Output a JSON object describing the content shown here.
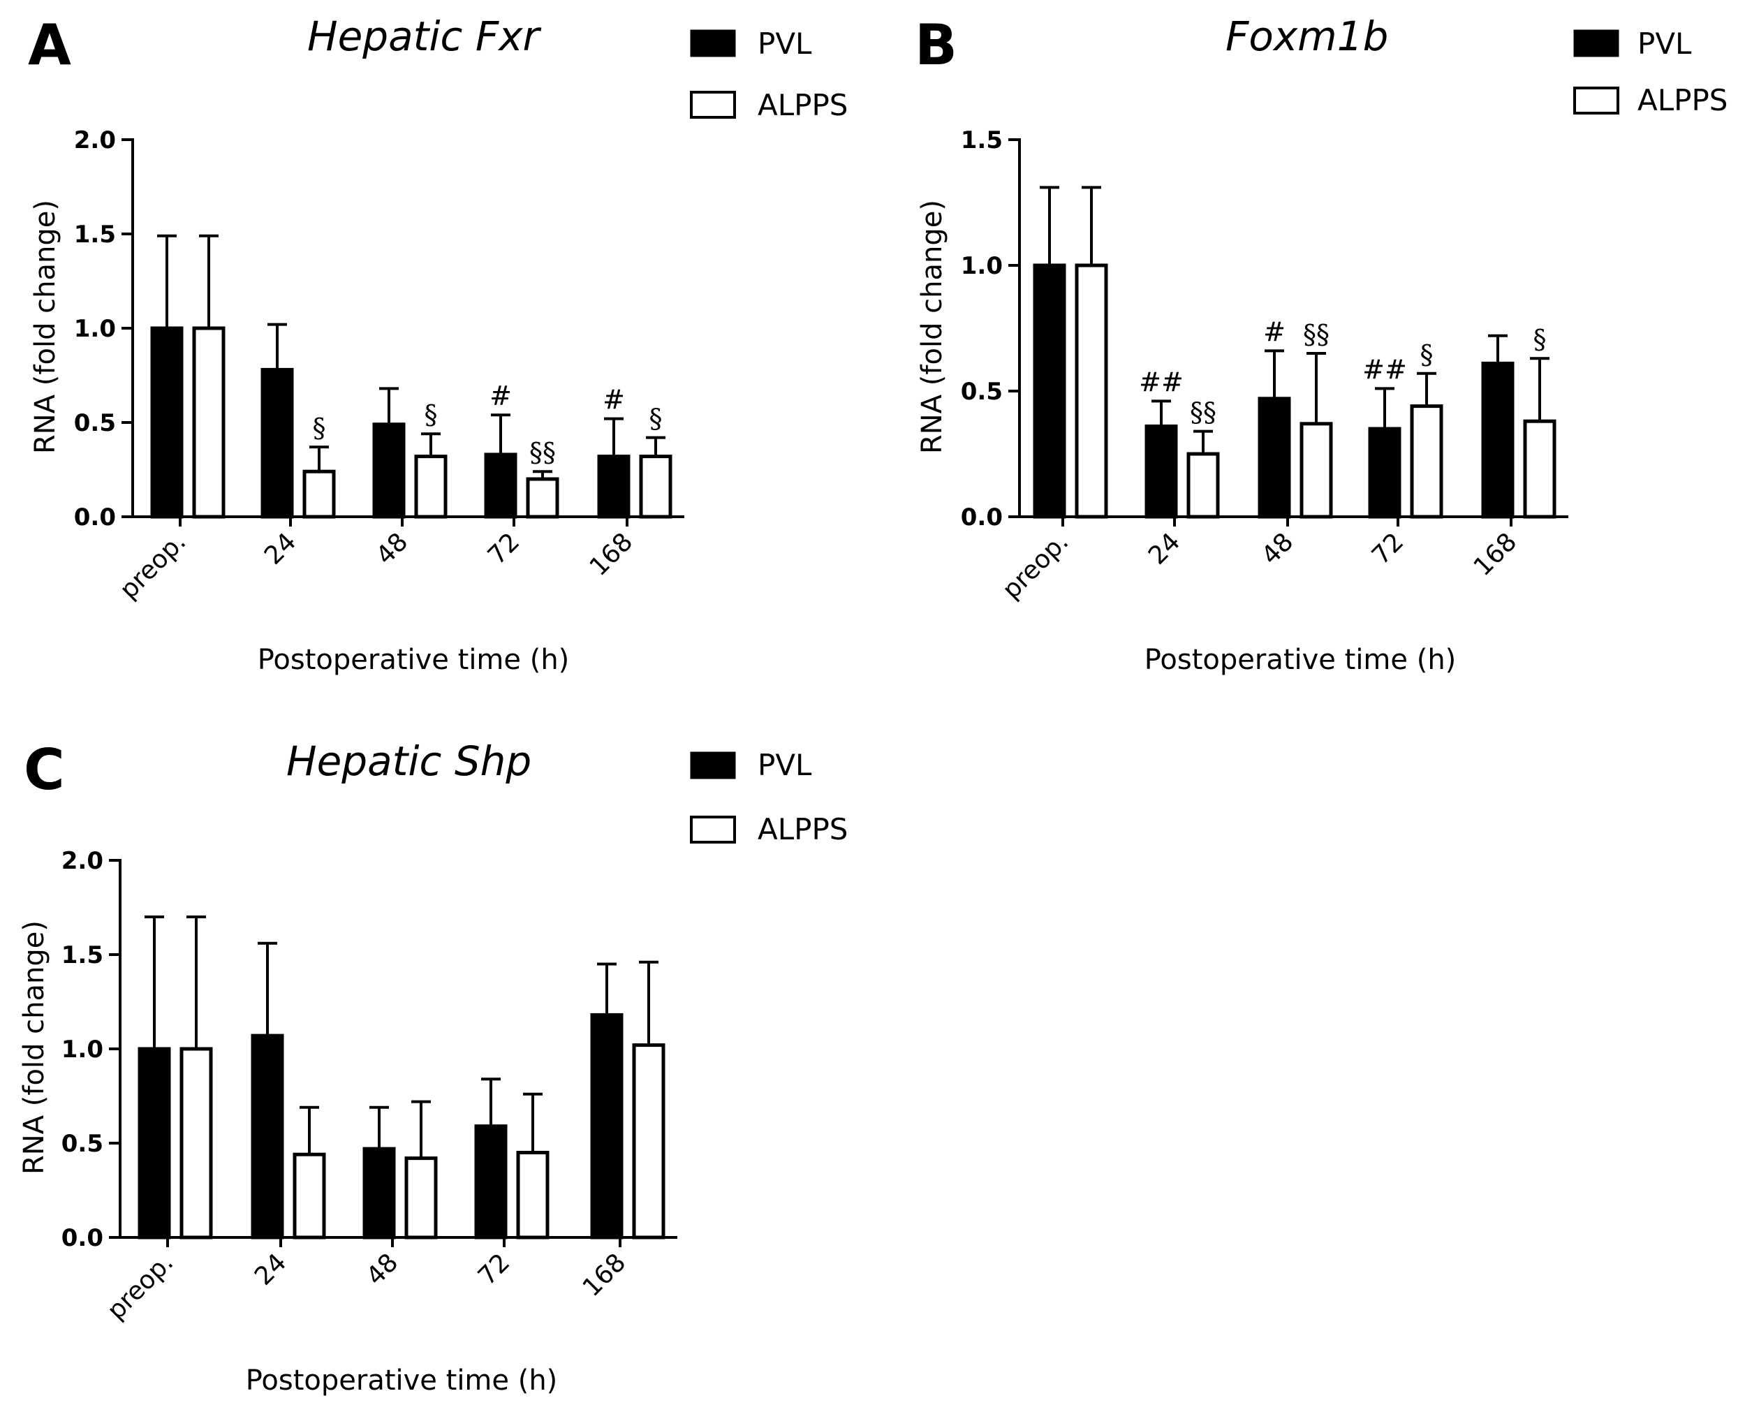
{
  "chart_data": [
    {
      "panel": "A",
      "type": "bar",
      "title": "Hepatic Fxr",
      "xlabel": "Postoperative time (h)",
      "ylabel": "RNA (fold change)",
      "categories": [
        "preop.",
        "24",
        "48",
        "72",
        "168"
      ],
      "ylim": [
        0,
        2.0
      ],
      "yticks": [
        "0.0",
        "0.5",
        "1.0",
        "1.5",
        "2.0"
      ],
      "legend_position": "top-right",
      "series": [
        {
          "name": "PVL",
          "fill": "#000000",
          "values": [
            1.0,
            0.78,
            0.49,
            0.33,
            0.32
          ],
          "errors": [
            0.49,
            0.24,
            0.19,
            0.21,
            0.2
          ],
          "annotations": [
            "",
            "",
            "",
            "#",
            "#"
          ]
        },
        {
          "name": "ALPPS",
          "fill": "#ffffff",
          "values": [
            1.0,
            0.24,
            0.32,
            0.2,
            0.32
          ],
          "errors": [
            0.49,
            0.13,
            0.12,
            0.04,
            0.1
          ],
          "annotations": [
            "",
            "§",
            "§",
            "§§",
            "§"
          ]
        }
      ]
    },
    {
      "panel": "B",
      "type": "bar",
      "title": "Foxm1b",
      "xlabel": "Postoperative time (h)",
      "ylabel": "RNA (fold change)",
      "categories": [
        "preop.",
        "24",
        "48",
        "72",
        "168"
      ],
      "ylim": [
        0,
        1.5
      ],
      "yticks": [
        "0.0",
        "0.5",
        "1.0",
        "1.5"
      ],
      "legend_position": "top-right",
      "series": [
        {
          "name": "PVL",
          "fill": "#000000",
          "values": [
            1.0,
            0.36,
            0.47,
            0.35,
            0.61
          ],
          "errors": [
            0.31,
            0.1,
            0.19,
            0.16,
            0.11
          ],
          "annotations": [
            "",
            "##",
            "#",
            "##",
            ""
          ]
        },
        {
          "name": "ALPPS",
          "fill": "#ffffff",
          "values": [
            1.0,
            0.25,
            0.37,
            0.44,
            0.38
          ],
          "errors": [
            0.31,
            0.09,
            0.28,
            0.13,
            0.25
          ],
          "annotations": [
            "",
            "§§",
            "§§",
            "§",
            "§"
          ]
        }
      ]
    },
    {
      "panel": "C",
      "type": "bar",
      "title": "Hepatic Shp",
      "xlabel": "Postoperative time (h)",
      "ylabel": "RNA (fold change)",
      "categories": [
        "preop.",
        "24",
        "48",
        "72",
        "168"
      ],
      "ylim": [
        0,
        2.0
      ],
      "yticks": [
        "0.0",
        "0.5",
        "1.0",
        "1.5",
        "2.0"
      ],
      "legend_position": "top-right",
      "series": [
        {
          "name": "PVL",
          "fill": "#000000",
          "values": [
            1.0,
            1.07,
            0.47,
            0.59,
            1.18
          ],
          "errors": [
            0.7,
            0.49,
            0.22,
            0.25,
            0.27
          ],
          "annotations": [
            "",
            "",
            "",
            "",
            ""
          ]
        },
        {
          "name": "ALPPS",
          "fill": "#ffffff",
          "values": [
            1.0,
            0.44,
            0.42,
            0.45,
            1.02
          ],
          "errors": [
            0.7,
            0.25,
            0.3,
            0.31,
            0.44
          ],
          "annotations": [
            "",
            "",
            "",
            "",
            ""
          ]
        }
      ]
    }
  ]
}
